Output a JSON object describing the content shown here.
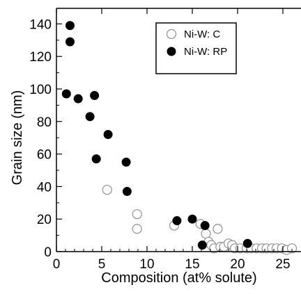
{
  "chart_data": {
    "type": "scatter",
    "title": "",
    "xlabel": "Composition (at% solute)",
    "ylabel": "Grain size (nm)",
    "xlim": [
      0,
      27
    ],
    "ylim": [
      0,
      150
    ],
    "xticks": [
      0,
      5,
      10,
      15,
      20,
      25
    ],
    "yticks": [
      0,
      20,
      40,
      60,
      80,
      100,
      120,
      140
    ],
    "grid": false,
    "legend_position": "top-right",
    "series": [
      {
        "name": "Ni-W: C",
        "marker": "open-circle",
        "color": "#909090",
        "points": [
          [
            5.6,
            38
          ],
          [
            8.9,
            23
          ],
          [
            8.9,
            14
          ],
          [
            13.0,
            16
          ],
          [
            15.9,
            17
          ],
          [
            16.5,
            11
          ],
          [
            16.8,
            6
          ],
          [
            17.1,
            4
          ],
          [
            17.4,
            2
          ],
          [
            17.8,
            14
          ],
          [
            18.1,
            3
          ],
          [
            18.5,
            3
          ],
          [
            19.0,
            5
          ],
          [
            19.4,
            4
          ],
          [
            19.7,
            2
          ],
          [
            20.3,
            2
          ],
          [
            21.0,
            2
          ],
          [
            21.5,
            2
          ],
          [
            22.1,
            2
          ],
          [
            22.7,
            2
          ],
          [
            23.2,
            2
          ],
          [
            23.8,
            2
          ],
          [
            24.3,
            2
          ],
          [
            24.9,
            2
          ],
          [
            25.4,
            1
          ],
          [
            26.0,
            2
          ]
        ]
      },
      {
        "name": "Ni-W: RP",
        "marker": "filled-circle",
        "color": "#000000",
        "points": [
          [
            1.5,
            139
          ],
          [
            1.5,
            129
          ],
          [
            1.1,
            97
          ],
          [
            2.4,
            94
          ],
          [
            4.2,
            96
          ],
          [
            3.7,
            83
          ],
          [
            5.7,
            72
          ],
          [
            4.4,
            57
          ],
          [
            7.7,
            55
          ],
          [
            7.8,
            37
          ],
          [
            13.3,
            19
          ],
          [
            15.0,
            20
          ],
          [
            16.4,
            16
          ],
          [
            16.1,
            4
          ],
          [
            21.1,
            5
          ]
        ]
      }
    ]
  }
}
